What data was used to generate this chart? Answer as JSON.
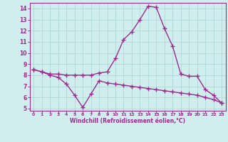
{
  "x": [
    0,
    1,
    2,
    3,
    4,
    5,
    6,
    7,
    8,
    9,
    10,
    11,
    12,
    13,
    14,
    15,
    16,
    17,
    18,
    19,
    20,
    21,
    22,
    23
  ],
  "line1": [
    8.5,
    8.3,
    8.1,
    8.1,
    8.0,
    8.0,
    8.0,
    8.0,
    8.2,
    8.3,
    9.5,
    11.2,
    11.9,
    13.0,
    14.2,
    14.1,
    12.2,
    10.6,
    8.1,
    7.9,
    7.9,
    6.7,
    6.2,
    5.5
  ],
  "line2": [
    8.5,
    8.3,
    8.0,
    7.8,
    7.2,
    6.2,
    5.1,
    6.3,
    7.5,
    7.3,
    7.2,
    7.1,
    7.0,
    6.9,
    6.8,
    6.7,
    6.6,
    6.5,
    6.4,
    6.3,
    6.2,
    6.0,
    5.8,
    5.5
  ],
  "line_color": "#9b2d8e",
  "bg_color": "#d0eeee",
  "grid_color": "#b0d8d8",
  "xlabel": "Windchill (Refroidissement éolien,°C)",
  "xlabel_color": "#9b2d8e",
  "ylim": [
    4.8,
    14.5
  ],
  "xlim": [
    -0.5,
    23.5
  ],
  "xticks": [
    0,
    1,
    2,
    3,
    4,
    5,
    6,
    7,
    8,
    9,
    10,
    11,
    12,
    13,
    14,
    15,
    16,
    17,
    18,
    19,
    20,
    21,
    22,
    23
  ],
  "yticks": [
    5,
    6,
    7,
    8,
    9,
    10,
    11,
    12,
    13,
    14
  ],
  "marker": "+",
  "markersize": 4,
  "linewidth": 1.0
}
